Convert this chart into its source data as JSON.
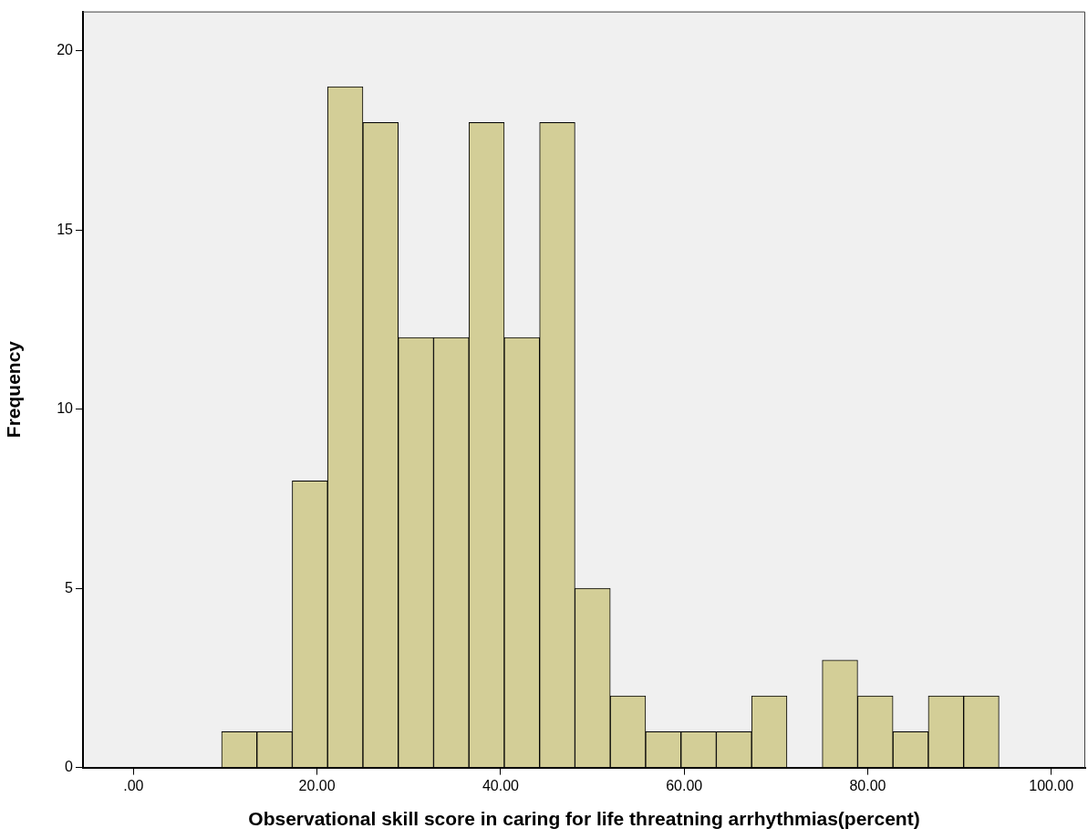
{
  "chart_data": {
    "type": "histogram",
    "xlabel": "Observational skill score in caring for life threatning arrhythmias(percent)",
    "ylabel": "Frequency",
    "bins": [
      9.6,
      13.45,
      17.3,
      21.15,
      25,
      28.85,
      32.7,
      36.55,
      40.4,
      44.25,
      48.1,
      51.95,
      55.8,
      59.65,
      63.5,
      67.35,
      71.2,
      75.05,
      78.9,
      82.75,
      86.6,
      90.45,
      94.3
    ],
    "values": [
      1,
      1,
      8,
      19,
      18,
      12,
      12,
      18,
      12,
      18,
      5,
      2,
      1,
      1,
      1,
      2,
      0,
      3,
      2,
      1,
      2,
      2
    ],
    "color": "#d3ce97",
    "xlim": [
      -5.5,
      103.7
    ],
    "xticks": [
      {
        "value": 0,
        "label": ".00"
      },
      {
        "value": 20,
        "label": "20.00"
      },
      {
        "value": 40,
        "label": "40.00"
      },
      {
        "value": 60,
        "label": "60.00"
      },
      {
        "value": 80,
        "label": "80.00"
      },
      {
        "value": 100,
        "label": "100.00"
      }
    ],
    "ylim": [
      0,
      21.1
    ],
    "yticks": [
      0,
      5,
      10,
      15,
      20
    ],
    "grid": false,
    "legend": false
  }
}
